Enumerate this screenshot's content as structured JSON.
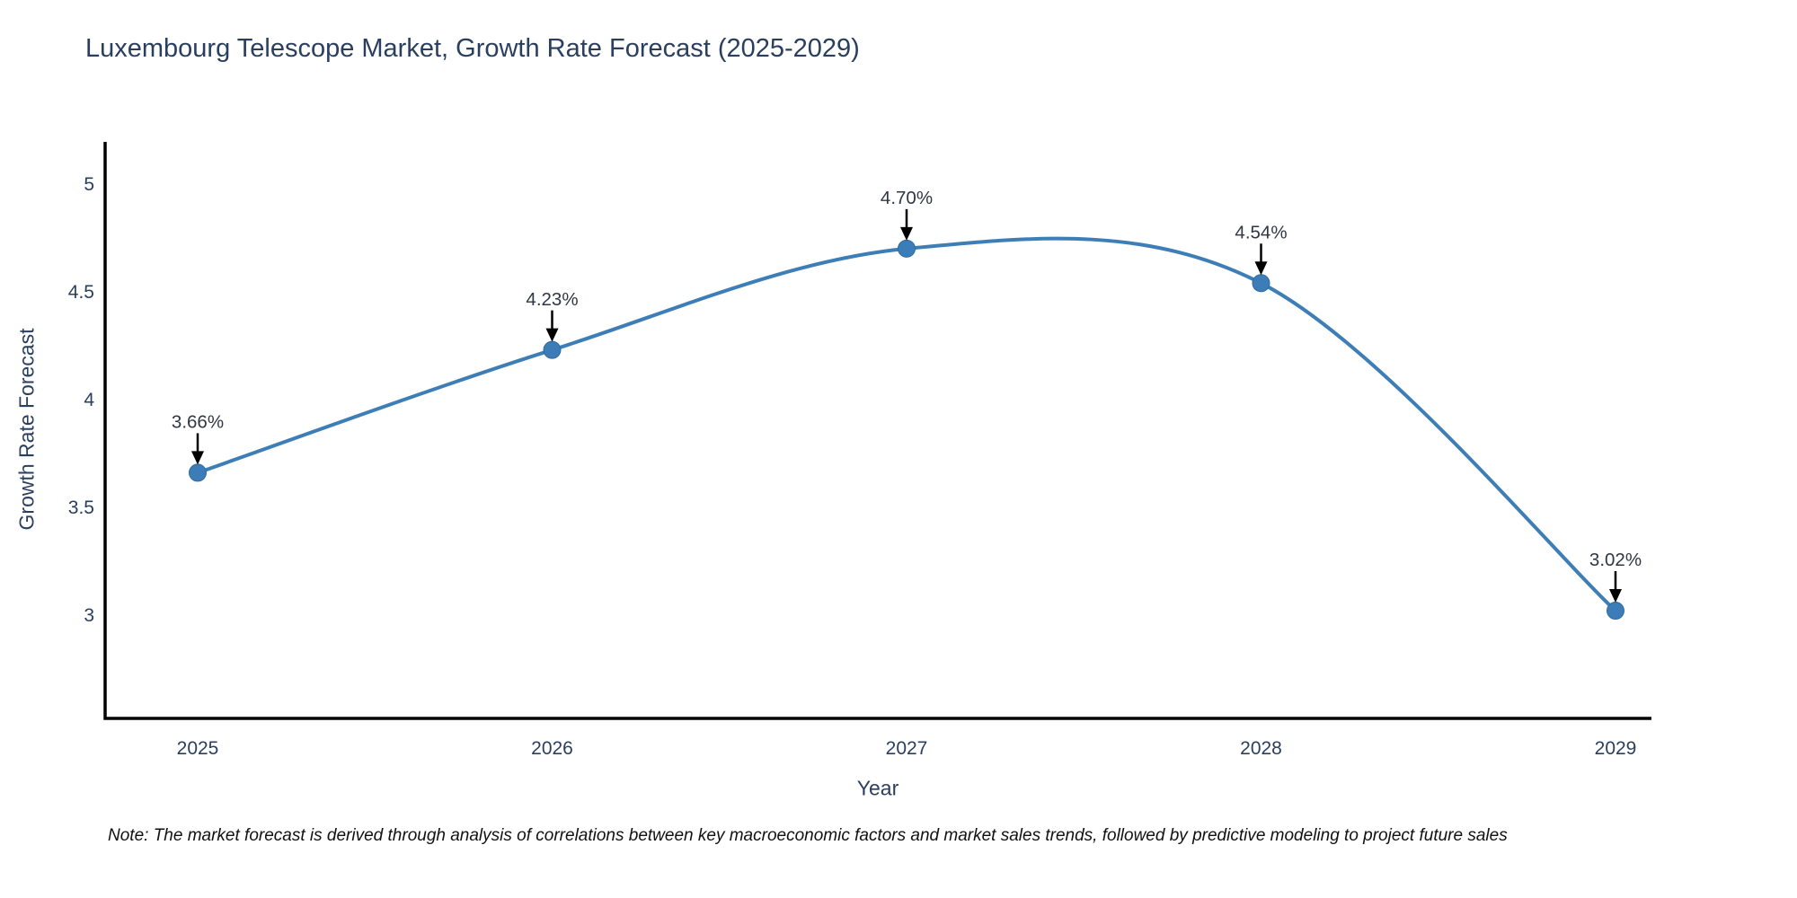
{
  "note": "Note: The market forecast is derived through analysis of correlations between key macroeconomic factors and market sales trends, followed by predictive modeling to project future sales",
  "chart_data": {
    "type": "line",
    "title": "Luxembourg Telescope Market, Growth Rate Forecast (2025-2029)",
    "xlabel": "Year",
    "ylabel": "Growth Rate Forecast",
    "categories": [
      "2025",
      "2026",
      "2027",
      "2028",
      "2029"
    ],
    "series": [
      {
        "name": "Growth Rate Forecast",
        "values": [
          3.66,
          4.23,
          4.7,
          4.54,
          3.02
        ]
      }
    ],
    "point_labels": [
      "3.66%",
      "4.23%",
      "4.70%",
      "4.54%",
      "3.02%"
    ],
    "ylim": [
      2.52,
      5.187
    ],
    "yticks": [
      3,
      3.5,
      4,
      4.5,
      5
    ],
    "ytick_labels": [
      "3",
      "3.5",
      "4",
      "4.5",
      "5"
    ],
    "grid": false,
    "legend": "none",
    "line_shape": "spline",
    "annotation_style": "text-with-down-arrow",
    "colors": {
      "line": "#3e7eb7",
      "marker": "#3c7db8",
      "marker_edge": "#2f6ba3",
      "axis": "#000000",
      "tick_text": "#2a3f5f",
      "title_text": "#2a3f5f",
      "annotation_text": "#2f3744",
      "arrow": "#000000",
      "background": "#ffffff"
    }
  }
}
